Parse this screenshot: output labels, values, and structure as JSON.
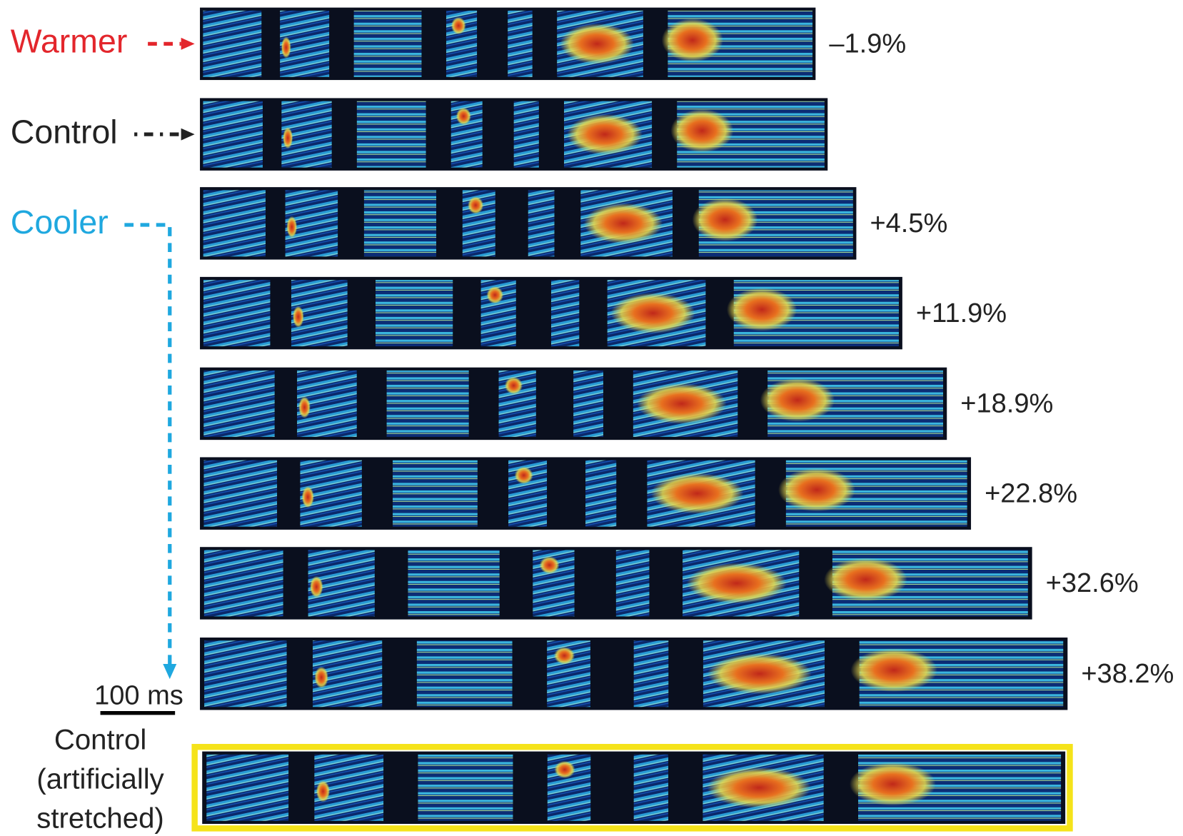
{
  "labels": {
    "warmer": "Warmer",
    "control": "Control",
    "cooler": "Cooler"
  },
  "changes": [
    "–1.9%",
    "+4.5%",
    "+11.9%",
    "+18.9%",
    "+22.8%",
    "+32.6%",
    "+38.2%"
  ],
  "scale_bar": "100 ms",
  "stretched_label": [
    "Control",
    "(artificially",
    "stretched)"
  ]
}
